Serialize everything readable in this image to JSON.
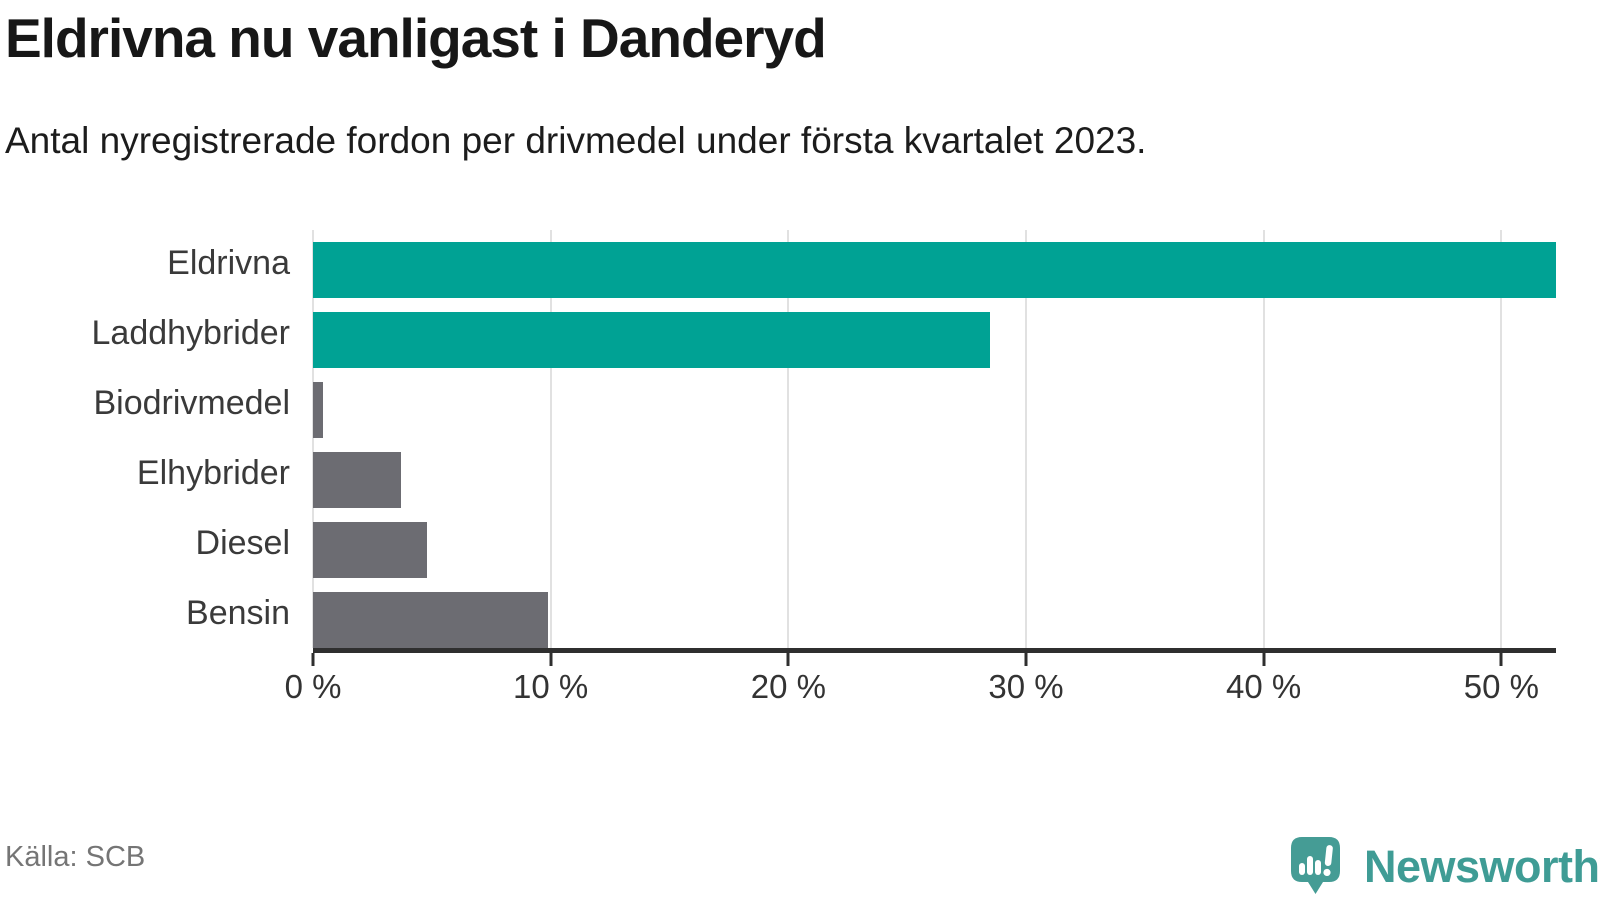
{
  "header": {
    "title": "Eldrivna nu vanligast i Danderyd",
    "subtitle": "Antal nyregistrerade fordon per drivmedel under första kvartalet 2023."
  },
  "chart_data": {
    "type": "bar",
    "orientation": "horizontal",
    "title": "Eldrivna nu vanligast i Danderyd",
    "subtitle": "Antal nyregistrerade fordon per drivmedel under första kvartalet 2023.",
    "categories": [
      "Eldrivna",
      "Laddhybrider",
      "Biodrivmedel",
      "Elhybrider",
      "Diesel",
      "Bensin"
    ],
    "values": [
      52.3,
      28.5,
      0.4,
      3.7,
      4.8,
      9.9
    ],
    "unit": "%",
    "bar_colors": [
      "#00a294",
      "#00a294",
      "#6c6c72",
      "#6c6c72",
      "#6c6c72",
      "#6c6c72"
    ],
    "xlabel": "",
    "ylabel": "",
    "xlim": [
      0,
      52.3
    ],
    "x_ticks": [
      0,
      10,
      20,
      30,
      40,
      50
    ],
    "x_tick_labels": [
      "0 %",
      "10 %",
      "20 %",
      "30 %",
      "40 %",
      "50 %"
    ],
    "grid": "vertical-gridlines",
    "legend": "none"
  },
  "footer": {
    "source": "Källa: SCB",
    "brand": "Newsworthy"
  },
  "colors": {
    "bar_teal": "#00a294",
    "bar_gray": "#6c6c72",
    "brand_teal": "#459c95",
    "brand_text_teal": "#3f9c95",
    "gridline": "#e1e1e1",
    "axis": "#2f2f2f",
    "source_text": "#757575",
    "title_text": "#171717",
    "label_text": "#3a3a3a",
    "background": "#ffffff"
  }
}
